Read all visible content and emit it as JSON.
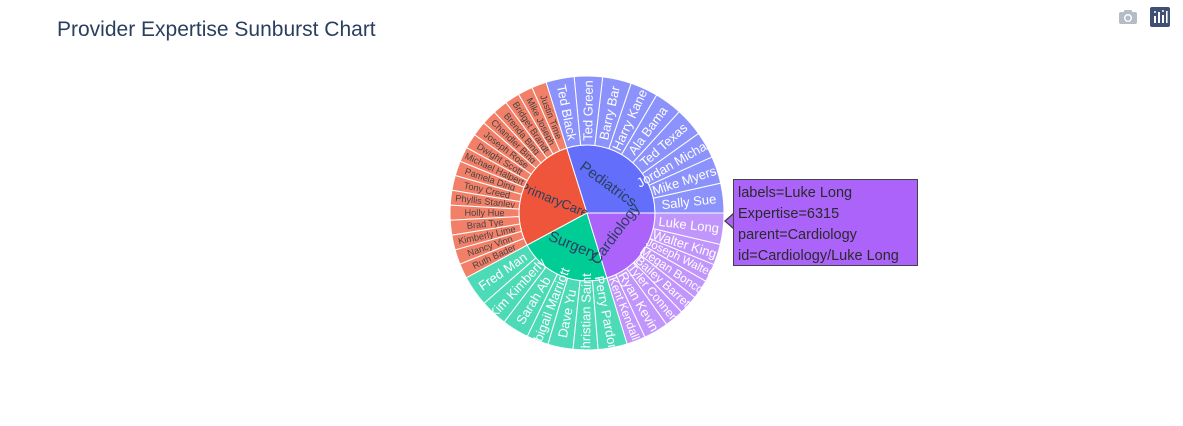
{
  "title": "Provider Expertise Sunburst Chart",
  "modebar": {
    "camera_icon": "camera-icon",
    "plotly_logo": "plotly-logo-icon"
  },
  "hover": {
    "line1": "labels=Luke Long",
    "line2": "Expertise=6315",
    "line3": "parent=Cardiology",
    "line4": "id=Cardiology/Luke Long"
  },
  "chart_data": {
    "type": "sunburst",
    "title": "Provider Expertise Sunburst Chart",
    "value_field": "Expertise",
    "start_angle_deg": 0,
    "direction": "counterclockwise",
    "colors": {
      "Pediatrics": "#636efa",
      "PrimaryCare": "#ef553b",
      "Surgery": "#00cc96",
      "Cardiology": "#ab63fa"
    },
    "child_colors": {
      "Pediatrics": "#8c92fb",
      "PrimaryCare": "#f28069",
      "Surgery": "#4ddab6",
      "Cardiology": "#c196fc"
    },
    "groups": [
      {
        "name": "Pediatrics",
        "children": [
          {
            "name": "Sally Sue",
            "value": 6000
          },
          {
            "name": "Mike Myers",
            "value": 5500
          },
          {
            "name": "Jordan Michael",
            "value": 5400
          },
          {
            "name": "Ted Texas",
            "value": 5800
          },
          {
            "name": "Ala Bama",
            "value": 5600
          },
          {
            "name": "Harry Kane",
            "value": 5600
          },
          {
            "name": "Barry Bar",
            "value": 5800
          },
          {
            "name": "Ted Green",
            "value": 5700
          },
          {
            "name": "Ted Black",
            "value": 5700
          }
        ]
      },
      {
        "name": "PrimaryCare",
        "children": [
          {
            "name": "Justin Time",
            "value": 3000
          },
          {
            "name": "Mike Joseph",
            "value": 3000
          },
          {
            "name": "Bridget Brandt",
            "value": 3000
          },
          {
            "name": "Brenda Bing",
            "value": 3000
          },
          {
            "name": "Chandler Bing",
            "value": 3000
          },
          {
            "name": "Joseph Rose",
            "value": 3000
          },
          {
            "name": "Dwight Scott",
            "value": 3000
          },
          {
            "name": "Michael Halpert",
            "value": 3000
          },
          {
            "name": "Pamela Ding",
            "value": 3000
          },
          {
            "name": "Tony Creed",
            "value": 3000
          },
          {
            "name": "Phyllis Stanley",
            "value": 3000
          },
          {
            "name": "Holly Hue",
            "value": 3000
          },
          {
            "name": "Brad Tye",
            "value": 3000
          },
          {
            "name": "Kimberly Lime",
            "value": 3000
          },
          {
            "name": "Nancy Vinn",
            "value": 3000
          },
          {
            "name": "Ruth Bader",
            "value": 3000
          }
        ]
      },
      {
        "name": "Surgery",
        "children": [
          {
            "name": "Fred Man",
            "value": 6200
          },
          {
            "name": "Kim Kimberly",
            "value": 5500
          },
          {
            "name": "Sarah Ab",
            "value": 5400
          },
          {
            "name": "Abigail Marriott",
            "value": 4400
          },
          {
            "name": "Dave Yu",
            "value": 5100
          },
          {
            "name": "Christian Saint",
            "value": 5000
          },
          {
            "name": "Perry Pardon",
            "value": 5900
          }
        ]
      },
      {
        "name": "Cardiology",
        "children": [
          {
            "name": "Kent Kendall",
            "value": 3800
          },
          {
            "name": "Ryan Kevin",
            "value": 5000
          },
          {
            "name": "Tyler Conner",
            "value": 3900
          },
          {
            "name": "Bailey Barret",
            "value": 3900
          },
          {
            "name": "Megan Bonco",
            "value": 3900
          },
          {
            "name": "Joseph Walter",
            "value": 3700
          },
          {
            "name": "Walter King",
            "value": 4200
          },
          {
            "name": "Luke Long",
            "value": 6315
          }
        ]
      }
    ]
  }
}
